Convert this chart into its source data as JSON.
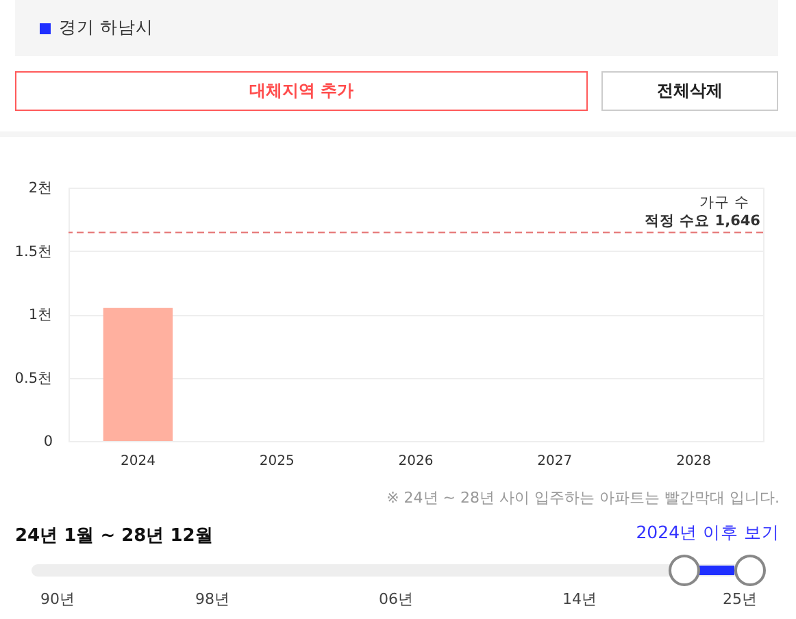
{
  "chart_data": {
    "type": "bar",
    "categories": [
      "2024",
      "2025",
      "2026",
      "2027",
      "2028"
    ],
    "series": [
      {
        "color": "#ffb09f",
        "values": [
          1.05,
          null,
          null,
          null,
          null
        ]
      }
    ],
    "ylabel": "가구 수",
    "ylim": [
      0,
      2
    ],
    "yticks": [
      0,
      {
        "value": 0.5,
        "label": "0.5천"
      },
      {
        "value": 1,
        "label": "1천"
      },
      {
        "value": 1.5,
        "label": "1.5천"
      },
      {
        "value": 2,
        "label": "2천"
      }
    ],
    "grid": "y",
    "legend": false,
    "ref_lines": [
      {
        "axis": "y",
        "value": 1.646,
        "label": "적정 수요 1,646",
        "color": "#e57373",
        "line_style": "dashed"
      }
    ],
    "annotations": [
      "경기 하남시",
      "대체지역 추가",
      "전체삭제",
      "※ 24년 ~ 28년 사이 입주하는 아파트는 빨간막대 입니다.",
      "24년 1월 ~ 28년 12월",
      "2024년 이후 보기",
      "90년",
      "98년",
      "06년",
      "14년",
      "25년"
    ]
  }
}
